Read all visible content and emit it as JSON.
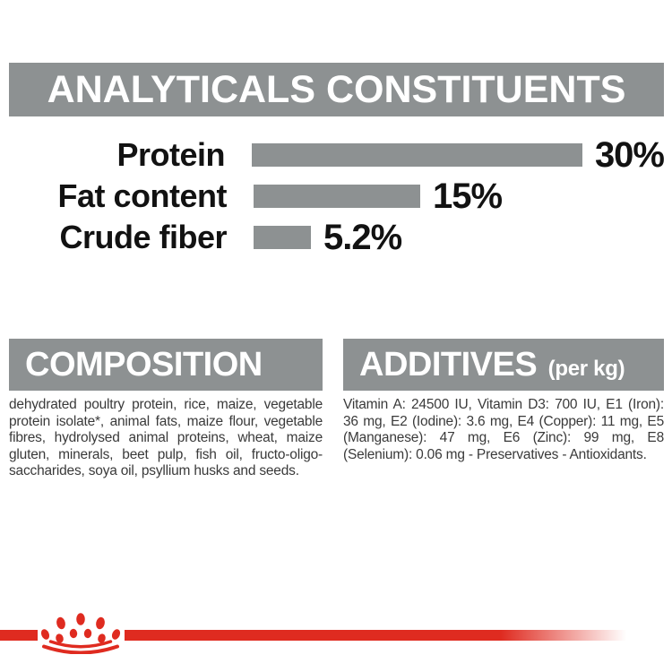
{
  "header": {
    "title": "ANALYTICALS CONSTITUENTS"
  },
  "chart_data": {
    "type": "bar",
    "orientation": "horizontal",
    "title": "ANALYTICALS CONSTITUENTS",
    "categories": [
      "Protein",
      "Fat content",
      "Crude fiber"
    ],
    "values": [
      30,
      15,
      5.2
    ],
    "value_labels": [
      "30%",
      "15%",
      "5.2%"
    ],
    "unit": "%",
    "xlim": [
      0,
      30
    ],
    "bar_color": "#8d9192",
    "grid": false,
    "legend": false
  },
  "composition": {
    "title": "COMPOSITION",
    "body": "dehydrated poultry protein, rice, maize, vegetable protein isolate*, animal fats, maize flour, vegetable fibres, hydrolysed animal proteins, wheat, maize gluten, minerals, beet pulp, fish oil, fructo-oligo-saccharides, soya oil, psyllium husks and seeds."
  },
  "additives": {
    "title": "ADDITIVES",
    "title_suffix": "(per kg)",
    "body": "Vitamin A: 24500 IU, Vitamin D3: 700 IU, E1 (Iron): 36 mg, E2 (Iodine): 3.6 mg, E4 (Copper): 11 mg, E5 (Manganese): 47 mg, E6 (Zinc): 99 mg, E8 (Selenium): 0.06 mg - Preservatives - Antioxidants."
  },
  "footer": {
    "logo": "royal-canin-crown"
  },
  "colors": {
    "section_gray": "#8d9192",
    "brand_red": "#df2b20",
    "chart_text": "#121212",
    "body_text": "#3a3a3a"
  }
}
